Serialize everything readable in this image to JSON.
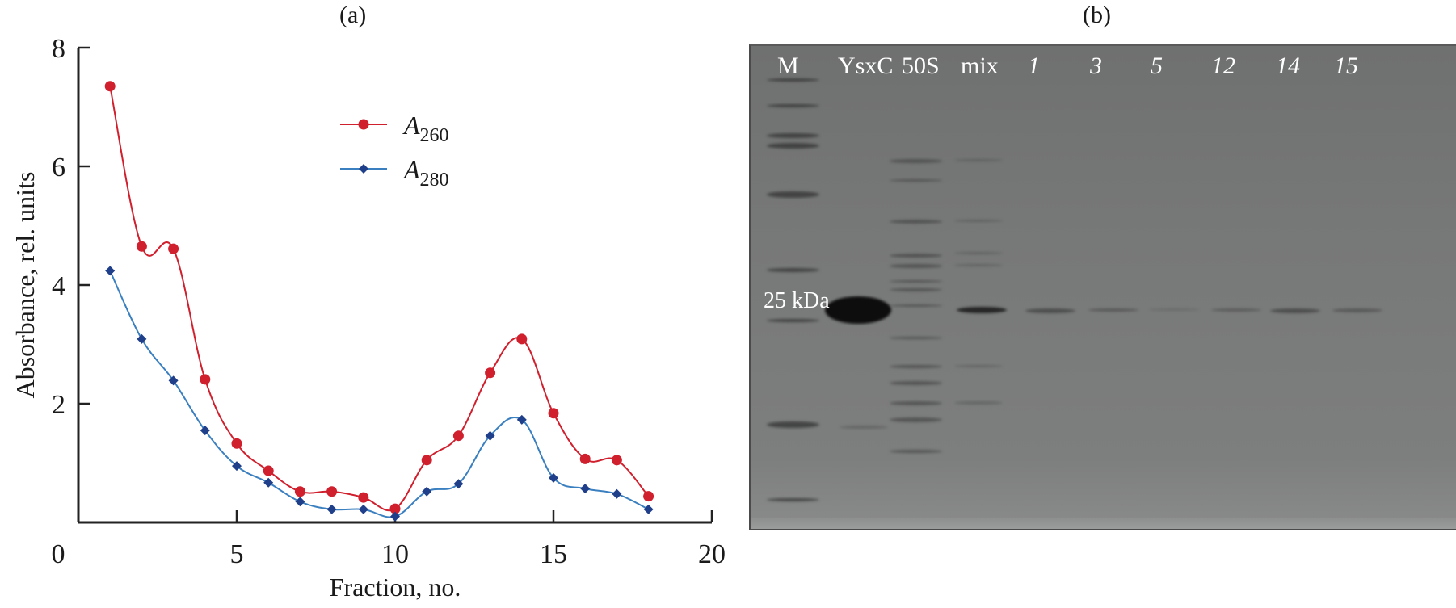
{
  "panels": {
    "a": {
      "label": "(a)"
    },
    "b": {
      "label": "(b)"
    }
  },
  "chart_data": [
    {
      "type": "line",
      "title": "(a)",
      "xlabel": "Fraction, no.",
      "ylabel": "Absorbance, rel. units",
      "xlim": [
        0,
        20
      ],
      "ylim": [
        0,
        8
      ],
      "xticks": [
        0,
        5,
        10,
        15,
        20
      ],
      "yticks": [
        2,
        4,
        6,
        8
      ],
      "grid": false,
      "legend_position": "upper center",
      "x": [
        1,
        2,
        3,
        4,
        5,
        6,
        7,
        8,
        9,
        10,
        11,
        12,
        13,
        14,
        15,
        16,
        17,
        18
      ],
      "series": [
        {
          "name": "A260",
          "label_main": "A",
          "label_sub": "260",
          "color": "#d0202e",
          "marker": "circle",
          "values": [
            7.35,
            4.65,
            4.61,
            2.41,
            1.33,
            0.87,
            0.52,
            0.52,
            0.42,
            0.23,
            1.05,
            1.46,
            2.52,
            3.09,
            1.84,
            1.07,
            1.05,
            0.44
          ]
        },
        {
          "name": "A280",
          "label_main": "A",
          "label_sub": "280",
          "color": "#1f3f8a",
          "line_color": "#3a7fc0",
          "marker": "diamond",
          "values": [
            4.24,
            3.09,
            2.39,
            1.55,
            0.95,
            0.67,
            0.35,
            0.22,
            0.22,
            0.1,
            0.52,
            0.65,
            1.46,
            1.73,
            0.75,
            0.57,
            0.48,
            0.22
          ]
        }
      ]
    }
  ],
  "gel": {
    "lanes": [
      {
        "label": "M",
        "italic": false
      },
      {
        "label": "YsxC",
        "italic": false
      },
      {
        "label": "50S",
        "italic": false
      },
      {
        "label": "mix",
        "italic": false
      },
      {
        "label": "1",
        "italic": true
      },
      {
        "label": "3",
        "italic": true
      },
      {
        "label": "5",
        "italic": true
      },
      {
        "label": "12",
        "italic": true
      },
      {
        "label": "14",
        "italic": true
      },
      {
        "label": "15",
        "italic": true
      }
    ],
    "marker_label": "25 kDa"
  }
}
